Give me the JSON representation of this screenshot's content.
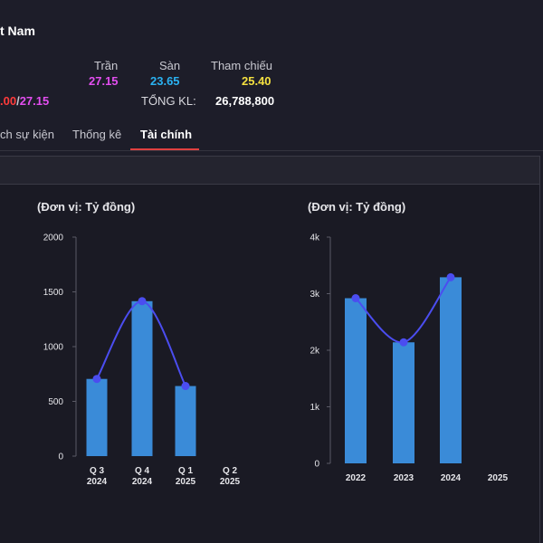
{
  "header": {
    "title_fragment": "t Nam",
    "ceiling_label": "Trần",
    "ceiling_value": "27.15",
    "floor_label": "Sàn",
    "floor_value": "23.65",
    "ref_label": "Tham chiếu",
    "ref_value": "25.40",
    "price_low": ".00",
    "price_sep": "/",
    "price_high": "27.15",
    "total_label": "TỔNG KL:",
    "total_value": "26,788,800"
  },
  "tabs": [
    {
      "label": "ch sự kiện"
    },
    {
      "label": "Thống kê"
    },
    {
      "label": "Tài chính"
    }
  ],
  "active_tab": "Tài chính",
  "colors": {
    "bar": "#3a8bd8",
    "line": "#4b4df0",
    "ceiling": "#e34ef0",
    "floor": "#2ab2f2",
    "reference": "#f4e040",
    "down": "#ff3b3b",
    "tab_underline": "#e04040"
  },
  "chart_data": [
    {
      "type": "bar",
      "unit_label": "(Đơn vị: Tỷ đồng)",
      "categories": [
        [
          "Q 3",
          "2024"
        ],
        [
          "Q 4",
          "2024"
        ],
        [
          "Q 1",
          "2025"
        ],
        [
          "Q 2",
          "2025"
        ]
      ],
      "values": [
        705,
        1415,
        640,
        null
      ],
      "line_values": [
        705,
        1415,
        640,
        null
      ],
      "y_ticks": [
        "0",
        "500",
        "1000",
        "1500",
        "2000"
      ],
      "ylim": [
        0,
        2000
      ]
    },
    {
      "type": "bar",
      "unit_label": "(Đơn vị: Tỷ đồng)",
      "categories": [
        [
          "2022"
        ],
        [
          "2023"
        ],
        [
          "2024"
        ],
        [
          "2025"
        ]
      ],
      "values": [
        2920,
        2140,
        3290,
        null
      ],
      "line_values": [
        2920,
        2140,
        3290,
        null
      ],
      "y_ticks": [
        "0",
        "1k",
        "2k",
        "3k",
        "4k"
      ],
      "ylim": [
        0,
        4000
      ]
    }
  ]
}
